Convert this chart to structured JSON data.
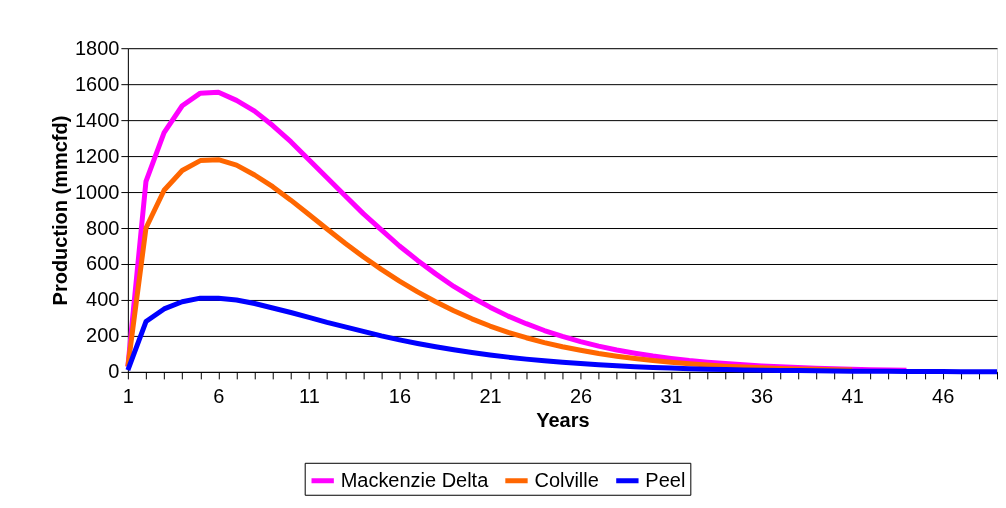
{
  "chart_data": {
    "type": "line",
    "xlabel": "Years",
    "ylabel": "Production (mmcfd)",
    "x": [
      1,
      2,
      3,
      4,
      5,
      6,
      7,
      8,
      9,
      10,
      11,
      12,
      13,
      14,
      15,
      16,
      17,
      18,
      19,
      20,
      21,
      22,
      23,
      24,
      25,
      26,
      27,
      28,
      29,
      30,
      31,
      32,
      33,
      34,
      35,
      36,
      37,
      38,
      39,
      40,
      41,
      42,
      43,
      44,
      45,
      46,
      47,
      48,
      49
    ],
    "series": [
      {
        "name": "Mackenzie Delta",
        "color": "#ff00ff",
        "values": [
          30,
          1060,
          1330,
          1480,
          1550,
          1555,
          1510,
          1450,
          1370,
          1280,
          1180,
          1080,
          980,
          880,
          790,
          700,
          620,
          545,
          475,
          415,
          360,
          310,
          268,
          230,
          197,
          168,
          143,
          122,
          104,
          88,
          75,
          63,
          54,
          46,
          39,
          33,
          28,
          24,
          20,
          17,
          14,
          12,
          10,
          9,
          null,
          null,
          null,
          null,
          null
        ]
      },
      {
        "name": "Colville",
        "color": "#ff6600",
        "values": [
          30,
          800,
          1010,
          1120,
          1175,
          1180,
          1150,
          1095,
          1030,
          955,
          875,
          795,
          715,
          640,
          570,
          505,
          445,
          390,
          340,
          295,
          255,
          220,
          190,
          163,
          140,
          120,
          102,
          87,
          74,
          63,
          53,
          45,
          38,
          32,
          27,
          23,
          19,
          16,
          14,
          12,
          10,
          null,
          null,
          null,
          null,
          null,
          null,
          null,
          null
        ]
      },
      {
        "name": "Peel",
        "color": "#0000ff",
        "values": [
          10,
          280,
          350,
          390,
          410,
          410,
          400,
          380,
          355,
          330,
          303,
          275,
          250,
          225,
          200,
          178,
          158,
          140,
          123,
          108,
          94,
          82,
          71,
          62,
          53,
          46,
          40,
          34,
          29,
          25,
          21,
          18,
          15,
          13,
          11,
          9,
          8,
          7,
          6,
          5,
          4,
          3,
          3,
          2,
          2,
          2,
          1,
          1,
          1
        ]
      }
    ],
    "xlim": [
      1,
      49
    ],
    "xticks": [
      1,
      {
        "value": 2,
        "label": null
      },
      {
        "value": 3,
        "label": null
      },
      {
        "value": 4,
        "label": null
      },
      {
        "value": 5,
        "label": null
      },
      6,
      {
        "value": 7,
        "label": null
      },
      {
        "value": 8,
        "label": null
      },
      {
        "value": 9,
        "label": null
      },
      {
        "value": 10,
        "label": null
      },
      11,
      {
        "value": 12,
        "label": null
      },
      {
        "value": 13,
        "label": null
      },
      {
        "value": 14,
        "label": null
      },
      {
        "value": 15,
        "label": null
      },
      16,
      {
        "value": 17,
        "label": null
      },
      {
        "value": 18,
        "label": null
      },
      {
        "value": 19,
        "label": null
      },
      {
        "value": 20,
        "label": null
      },
      21,
      {
        "value": 22,
        "label": null
      },
      {
        "value": 23,
        "label": null
      },
      {
        "value": 24,
        "label": null
      },
      {
        "value": 25,
        "label": null
      },
      26,
      {
        "value": 27,
        "label": null
      },
      {
        "value": 28,
        "label": null
      },
      {
        "value": 29,
        "label": null
      },
      {
        "value": 30,
        "label": null
      },
      31,
      {
        "value": 32,
        "label": null
      },
      {
        "value": 33,
        "label": null
      },
      {
        "value": 34,
        "label": null
      },
      {
        "value": 35,
        "label": null
      },
      36,
      {
        "value": 37,
        "label": null
      },
      {
        "value": 38,
        "label": null
      },
      {
        "value": 39,
        "label": null
      },
      {
        "value": 40,
        "label": null
      },
      41,
      {
        "value": 42,
        "label": null
      },
      {
        "value": 43,
        "label": null
      },
      {
        "value": 44,
        "label": null
      },
      {
        "value": 45,
        "label": null
      },
      46,
      {
        "value": 47,
        "label": null
      },
      {
        "value": 48,
        "label": null
      },
      {
        "value": 49,
        "label": null
      }
    ],
    "ylim": [
      0,
      1800
    ],
    "yticks": [
      0,
      200,
      400,
      600,
      800,
      1000,
      1200,
      1400,
      1600,
      1800
    ],
    "grid": "y",
    "legend": "bottom",
    "marker": "none",
    "line_style": "solid"
  }
}
